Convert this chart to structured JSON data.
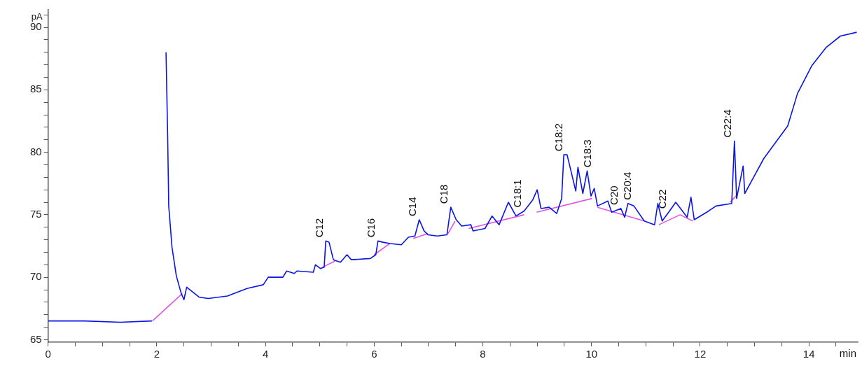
{
  "chart_data": {
    "type": "line",
    "xlabel": "min",
    "ylabel": "pA",
    "xlim": [
      0,
      14.9
    ],
    "ylim": [
      64.8,
      91.4
    ],
    "xticks": [
      0,
      {
        "value": 0.5,
        "label": null
      },
      {
        "value": 1,
        "label": null
      },
      {
        "value": 1.5,
        "label": null
      },
      2,
      {
        "value": 2.5,
        "label": null
      },
      {
        "value": 3,
        "label": null
      },
      {
        "value": 3.5,
        "label": null
      },
      4,
      {
        "value": 4.5,
        "label": null
      },
      {
        "value": 5,
        "label": null
      },
      {
        "value": 5.5,
        "label": null
      },
      6,
      {
        "value": 6.5,
        "label": null
      },
      {
        "value": 7,
        "label": null
      },
      {
        "value": 7.5,
        "label": null
      },
      8,
      {
        "value": 8.5,
        "label": null
      },
      {
        "value": 9,
        "label": null
      },
      {
        "value": 9.5,
        "label": null
      },
      10,
      {
        "value": 10.5,
        "label": null
      },
      {
        "value": 11,
        "label": null
      },
      {
        "value": 11.5,
        "label": null
      },
      12,
      {
        "value": 12.5,
        "label": null
      },
      {
        "value": 13,
        "label": null
      },
      {
        "value": 13.5,
        "label": null
      },
      14,
      {
        "value": 14.5,
        "label": null
      }
    ],
    "yticks": [
      65,
      {
        "value": 66,
        "label": null
      },
      {
        "value": 67,
        "label": null
      },
      {
        "value": 68,
        "label": null
      },
      {
        "value": 69,
        "label": null
      },
      70,
      {
        "value": 71,
        "label": null
      },
      {
        "value": 72,
        "label": null
      },
      {
        "value": 73,
        "label": null
      },
      {
        "value": 74,
        "label": null
      },
      75,
      {
        "value": 76,
        "label": null
      },
      {
        "value": 77,
        "label": null
      },
      {
        "value": 78,
        "label": null
      },
      {
        "value": 79,
        "label": null
      },
      80,
      {
        "value": 81,
        "label": null
      },
      {
        "value": 82,
        "label": null
      },
      {
        "value": 83,
        "label": null
      },
      {
        "value": 84,
        "label": null
      },
      85,
      {
        "value": 86,
        "label": null
      },
      {
        "value": 87,
        "label": null
      },
      {
        "value": 88,
        "label": null
      },
      {
        "value": 89,
        "label": null
      },
      90,
      {
        "value": 91,
        "label": null
      }
    ],
    "series": [
      {
        "color": "#0a14e6",
        "x": [
          0,
          0.67,
          1.33,
          1.91,
          1.92,
          2.16,
          2.17,
          2.2,
          2.22,
          2.28,
          2.36,
          2.45,
          2.5,
          2.55,
          2.78,
          2.95,
          3.3,
          3.66,
          3.96,
          4.05,
          4.32,
          4.39,
          4.53,
          4.58,
          4.88,
          4.92,
          5.01,
          5.08,
          5.11,
          5.17,
          5.25,
          5.38,
          5.5,
          5.58,
          5.93,
          6.03,
          6.07,
          6.16,
          6.29,
          6.5,
          6.63,
          6.75,
          6.83,
          6.92,
          6.99,
          7.16,
          7.34,
          7.41,
          7.51,
          7.61,
          7.78,
          7.82,
          8.04,
          8.17,
          8.3,
          8.47,
          8.61,
          8.76,
          8.92,
          9.0,
          9.07,
          9.22,
          9.36,
          9.45,
          9.49,
          9.55,
          9.71,
          9.75,
          9.84,
          9.92,
          9.99,
          10.05,
          10.11,
          10.3,
          10.37,
          10.54,
          10.61,
          10.67,
          10.78,
          10.97,
          11.16,
          11.22,
          11.3,
          11.42,
          11.55,
          11.76,
          11.83,
          11.89,
          12.12,
          12.29,
          12.58,
          12.63,
          12.67,
          12.79,
          12.82,
          13.17,
          13.61,
          13.79,
          14.05,
          14.32,
          14.58,
          14.88
        ],
        "values": [
          66.5,
          66.5,
          66.4,
          66.5,
          null,
          null,
          88.0,
          81.3,
          75.7,
          72.4,
          70.1,
          68.7,
          68.2,
          69.2,
          68.4,
          68.3,
          68.5,
          69.1,
          69.4,
          70.0,
          70.0,
          70.5,
          70.3,
          70.5,
          70.4,
          71.0,
          70.7,
          70.8,
          72.9,
          72.8,
          71.4,
          71.2,
          71.8,
          71.4,
          71.5,
          71.8,
          72.9,
          72.8,
          72.7,
          72.6,
          73.2,
          73.3,
          74.6,
          73.7,
          73.4,
          73.3,
          73.4,
          75.6,
          74.6,
          74.1,
          74.2,
          73.7,
          73.9,
          74.9,
          74.2,
          76.0,
          74.9,
          75.3,
          76.2,
          77.0,
          75.5,
          75.6,
          75.1,
          76.3,
          79.8,
          79.8,
          76.9,
          78.8,
          76.7,
          78.5,
          76.5,
          77.1,
          75.7,
          76.1,
          75.2,
          75.5,
          74.8,
          75.9,
          75.7,
          74.5,
          74.2,
          75.9,
          74.5,
          75.2,
          76.0,
          74.8,
          76.4,
          74.6,
          75.2,
          75.7,
          75.9,
          80.9,
          76.3,
          78.9,
          76.7,
          79.5,
          82.1,
          84.7,
          86.9,
          88.4,
          89.3,
          89.6
        ]
      },
      {
        "color": "#e055e0",
        "x": [
          1.92,
          2.47
        ],
        "values": [
          66.5,
          68.7
        ]
      },
      {
        "color": "#e055e0",
        "x": [
          5.05,
          5.28
        ],
        "values": [
          70.8,
          71.3
        ]
      },
      {
        "color": "#e055e0",
        "x": [
          6.0,
          6.29
        ],
        "values": [
          71.8,
          72.7
        ]
      },
      {
        "color": "#e055e0",
        "x": [
          6.72,
          6.99
        ],
        "values": [
          73.1,
          73.5
        ]
      },
      {
        "color": "#e055e0",
        "x": [
          7.36,
          7.49
        ],
        "values": [
          73.5,
          74.5
        ]
      },
      {
        "color": "#e055e0",
        "x": [
          7.74,
          8.76
        ],
        "values": [
          73.9,
          75.0
        ]
      },
      {
        "color": "#e055e0",
        "x": [
          8.99,
          10.01
        ],
        "values": [
          75.2,
          76.3
        ]
      },
      {
        "color": "#e055e0",
        "x": [
          10.11,
          10.97
        ],
        "values": [
          75.6,
          74.5
        ]
      },
      {
        "color": "#e055e0",
        "x": [
          11.24,
          11.63,
          11.86
        ],
        "values": [
          74.2,
          75.0,
          74.5
        ]
      },
      {
        "color": "#e055e0",
        "x": [
          12.55,
          12.68
        ],
        "values": [
          76.0,
          76.6
        ]
      }
    ],
    "annotations": [
      {
        "text": "C12",
        "x": 5.11,
        "y": 72.9
      },
      {
        "text": "C16",
        "x": 6.07,
        "y": 72.9
      },
      {
        "text": "C14",
        "x": 6.83,
        "y": 74.6
      },
      {
        "text": "C18",
        "x": 7.41,
        "y": 75.6
      },
      {
        "text": "C18:1",
        "x": 8.76,
        "y": 75.3
      },
      {
        "text": "C18:2",
        "x": 9.52,
        "y": 79.8
      },
      {
        "text": "C18:3",
        "x": 10.05,
        "y": 77.1
      },
      {
        "text": "C20",
        "x": 10.54,
        "y": 75.5
      },
      {
        "text": "C20:4",
        "x": 10.78,
        "y": 75.7
      },
      {
        "text": "C22",
        "x": 11.42,
        "y": 75.2
      },
      {
        "text": "C22:4",
        "x": 12.63,
        "y": 80.9
      }
    ]
  }
}
